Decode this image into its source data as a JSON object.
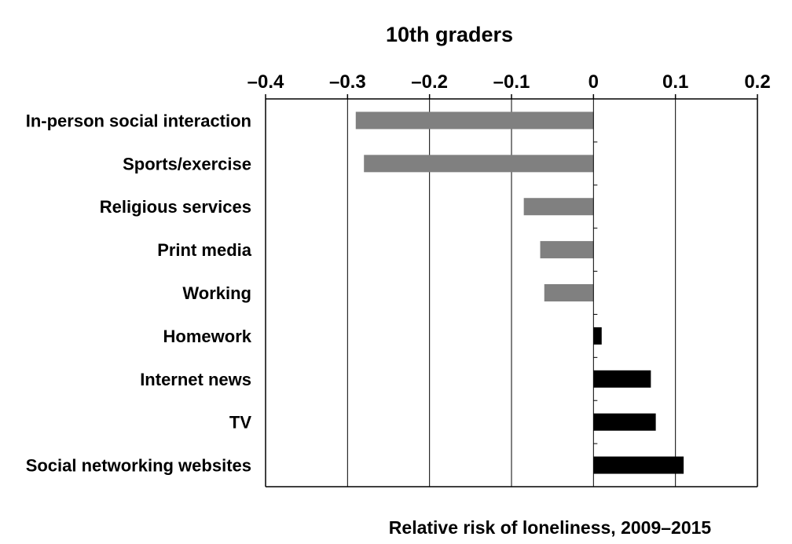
{
  "chart_data": {
    "type": "bar",
    "orientation": "horizontal",
    "title": "10th graders",
    "xlabel": "Relative risk of loneliness, 2009–2015",
    "ylabel": "",
    "xlim": [
      -0.4,
      0.2
    ],
    "x_ticks": [
      -0.4,
      -0.3,
      -0.2,
      -0.1,
      0,
      0.1,
      0.2
    ],
    "x_tick_labels": [
      "–0.4",
      "–0.3",
      "–0.2",
      "–0.1",
      "0",
      "0.1",
      "0.2"
    ],
    "x_axis_position": "top",
    "grid": "vertical",
    "categories": [
      "In-person social interaction",
      "Sports/exercise",
      "Religious services",
      "Print media",
      "Working",
      "Homework",
      "Internet news",
      "TV",
      "Social networking websites"
    ],
    "values": [
      -0.29,
      -0.28,
      -0.085,
      -0.065,
      -0.06,
      0.01,
      0.07,
      0.076,
      0.11
    ],
    "colors": {
      "negative": "#808080",
      "positive": "#000000",
      "grid": "#000000",
      "axis": "#000000"
    }
  }
}
